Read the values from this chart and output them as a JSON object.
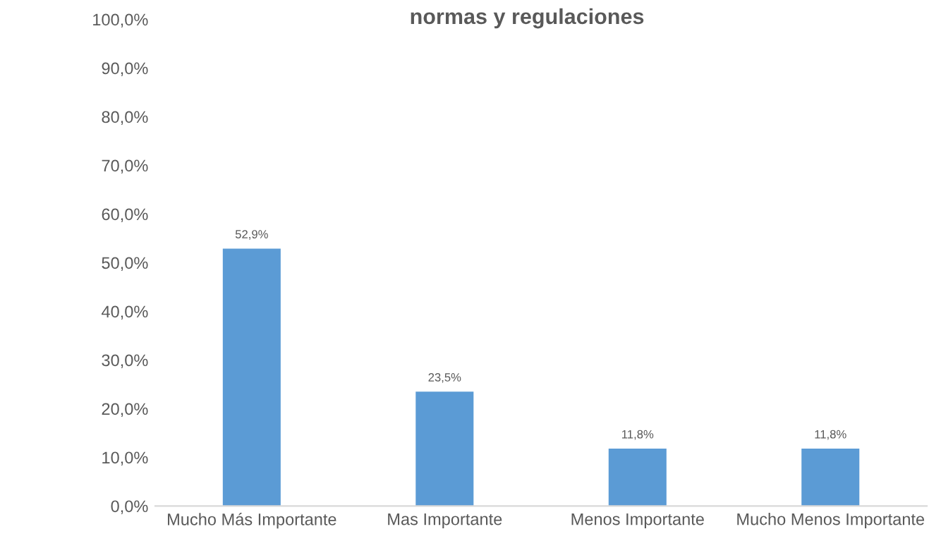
{
  "chart_data": {
    "type": "bar",
    "title": "normas y regulaciones",
    "categories": [
      "Mucho Más Importante",
      "Mas Importante",
      "Menos Importante",
      "Mucho Menos Importante"
    ],
    "values": [
      52.9,
      23.5,
      11.8,
      11.8
    ],
    "value_labels": [
      "52,9%",
      "23,5%",
      "11,8%",
      "11,8%"
    ],
    "color": "#5b9bd5",
    "ylim": [
      0,
      100
    ],
    "yticks": [
      {
        "value": 0,
        "label": "0,0%"
      },
      {
        "value": 10,
        "label": "10,0%"
      },
      {
        "value": 20,
        "label": "20,0%"
      },
      {
        "value": 30,
        "label": "30,0%"
      },
      {
        "value": 40,
        "label": "40,0%"
      },
      {
        "value": 50,
        "label": "50,0%"
      },
      {
        "value": 60,
        "label": "60,0%"
      },
      {
        "value": 70,
        "label": "70,0%"
      },
      {
        "value": 80,
        "label": "80,0%"
      },
      {
        "value": 90,
        "label": "90,0%"
      },
      {
        "value": 100,
        "label": "100,0%"
      }
    ],
    "grid": false,
    "legend": false
  }
}
